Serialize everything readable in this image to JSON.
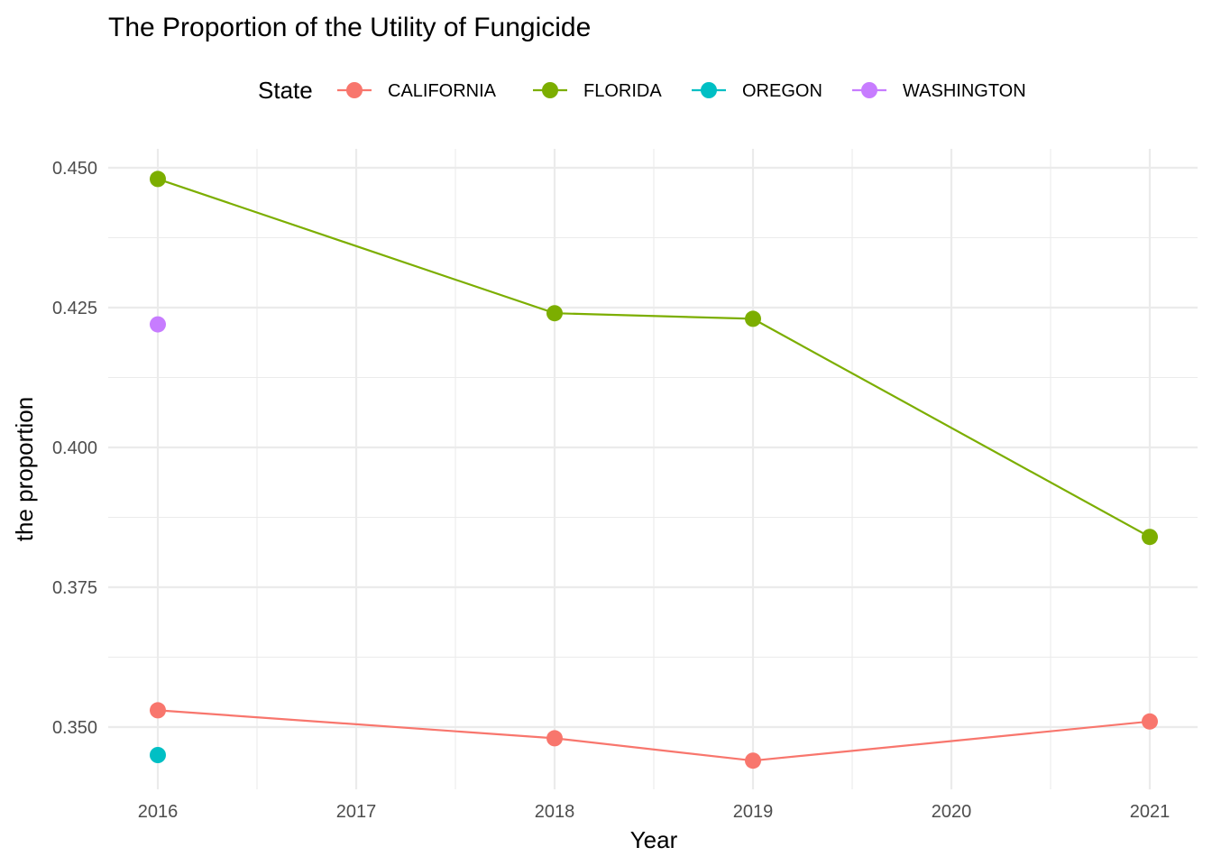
{
  "chart_data": {
    "type": "line",
    "title": "The Proportion of the Utility of Fungicide",
    "xlabel": "Year",
    "ylabel": "the proportion",
    "legend_title": "State",
    "legend_position": "top",
    "grid": true,
    "xlim": [
      2016,
      2021
    ],
    "ylim": [
      0.34,
      0.45
    ],
    "x_ticks": [
      2016,
      2017,
      2018,
      2019,
      2020,
      2021
    ],
    "y_ticks": [
      "0.350",
      "0.375",
      "0.400",
      "0.425",
      "0.450"
    ],
    "series": [
      {
        "name": "CALIFORNIA",
        "color": "#F8766D",
        "points": [
          {
            "x": 2016,
            "y": 0.353
          },
          {
            "x": 2018,
            "y": 0.348
          },
          {
            "x": 2019,
            "y": 0.344
          },
          {
            "x": 2021,
            "y": 0.351
          }
        ]
      },
      {
        "name": "FLORIDA",
        "color": "#7CAE00",
        "points": [
          {
            "x": 2016,
            "y": 0.448
          },
          {
            "x": 2018,
            "y": 0.424
          },
          {
            "x": 2019,
            "y": 0.423
          },
          {
            "x": 2021,
            "y": 0.384
          }
        ]
      },
      {
        "name": "OREGON",
        "color": "#00BFC4",
        "points": [
          {
            "x": 2016,
            "y": 0.345
          }
        ]
      },
      {
        "name": "WASHINGTON",
        "color": "#C77CFF",
        "points": [
          {
            "x": 2016,
            "y": 0.422
          }
        ]
      }
    ]
  }
}
